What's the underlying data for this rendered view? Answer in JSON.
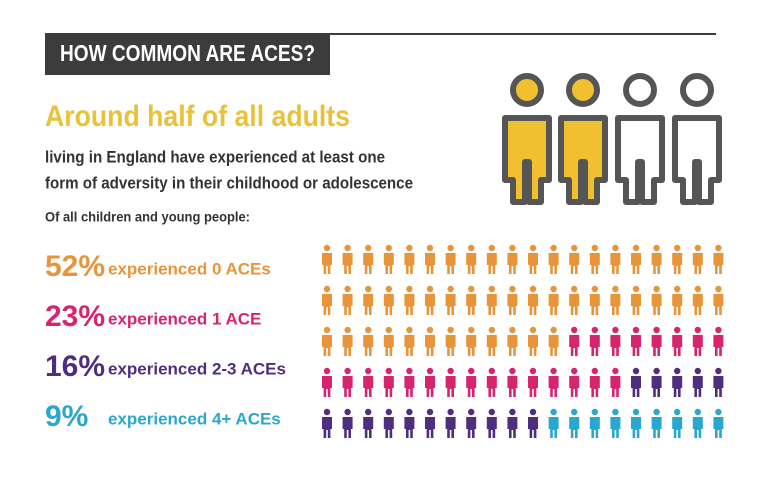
{
  "chart_data": {
    "type": "pictogram",
    "title": "HOW COMMON ARE ACES?",
    "headline": "Around half of all adults",
    "subtitle_lines": [
      "living in England have experienced at least one",
      "form of adversity in their childhood or adolescence"
    ],
    "intro": "Of all children and young people:",
    "series": [
      {
        "name": "experienced 0 ACEs",
        "color": "#e8943a",
        "values": [
          52
        ],
        "value_labels": [
          "52%"
        ]
      },
      {
        "name": "experienced 1 ACE",
        "color": "#d6246e",
        "values": [
          23
        ],
        "value_labels": [
          "23%"
        ]
      },
      {
        "name": "experienced 2-3 ACEs",
        "color": "#4f2d7f",
        "values": [
          16
        ],
        "value_labels": [
          "16%"
        ]
      },
      {
        "name": "experienced 4+ ACEs",
        "color": "#2aa7d0",
        "values": [
          9
        ],
        "value_labels": [
          "9%"
        ]
      }
    ]
  }
}
